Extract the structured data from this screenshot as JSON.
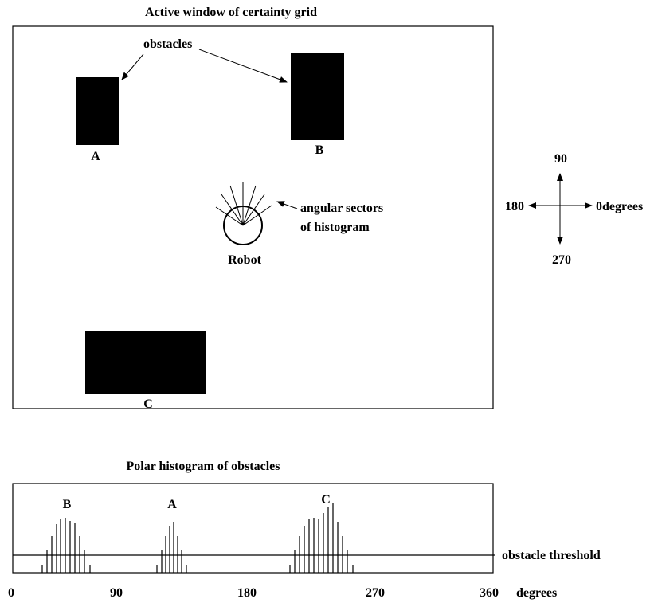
{
  "grid": {
    "title": "Active window of certainty grid",
    "obstacles_label": "obstacles",
    "obstacle_labels": [
      "A",
      "B",
      "C"
    ],
    "robot_label": "Robot",
    "sectors_label_line1": "angular sectors",
    "sectors_label_line2": "of histogram"
  },
  "compass": {
    "north": "90",
    "west": "180",
    "south": "270",
    "east": "0degrees"
  },
  "histogram": {
    "title": "Polar histogram of obstacles",
    "peak_labels": [
      "B",
      "A",
      "C"
    ],
    "threshold_label": "obstacle threshold",
    "axis_ticks": [
      "0",
      "90",
      "180",
      "270",
      "360"
    ],
    "axis_unit": "degrees"
  }
}
